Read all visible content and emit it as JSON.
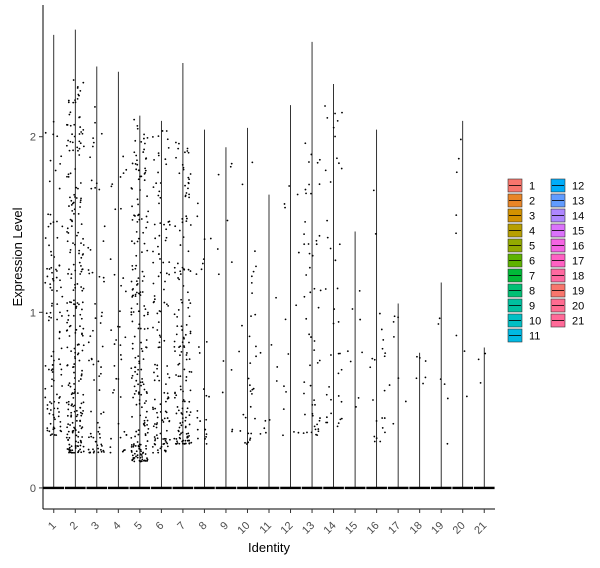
{
  "chart_data": {
    "type": "violin",
    "xlabel": "Identity",
    "ylabel": "Expression Level",
    "categories": [
      "1",
      "2",
      "3",
      "4",
      "5",
      "6",
      "7",
      "8",
      "9",
      "10",
      "11",
      "12",
      "13",
      "14",
      "15",
      "16",
      "17",
      "18",
      "19",
      "20",
      "21"
    ],
    "ylim": [
      -0.12,
      2.75
    ],
    "yticks": [
      0,
      1,
      2
    ],
    "grid": false,
    "legend_position": "right",
    "series": [
      {
        "name": "1",
        "color": "#F8766D",
        "max": 2.58,
        "zero_fraction": 0.72,
        "nonzero_range": [
          0.3,
          2.1
        ],
        "n_points": 110
      },
      {
        "name": "2",
        "color": "#E88526",
        "max": 2.61,
        "zero_fraction": 0.55,
        "nonzero_range": [
          0.2,
          2.35
        ],
        "n_points": 260
      },
      {
        "name": "3",
        "color": "#D39200",
        "max": 2.4,
        "zero_fraction": 0.8,
        "nonzero_range": [
          0.2,
          2.25
        ],
        "n_points": 70
      },
      {
        "name": "4",
        "color": "#B79F00",
        "max": 2.37,
        "zero_fraction": 0.85,
        "nonzero_range": [
          0.2,
          1.9
        ],
        "n_points": 40
      },
      {
        "name": "5",
        "color": "#93AA00",
        "max": 2.12,
        "zero_fraction": 0.6,
        "nonzero_range": [
          0.15,
          2.1
        ],
        "n_points": 220
      },
      {
        "name": "6",
        "color": "#5EB300",
        "max": 2.09,
        "zero_fraction": 0.65,
        "nonzero_range": [
          0.2,
          2.05
        ],
        "n_points": 130
      },
      {
        "name": "7",
        "color": "#00BA38",
        "max": 2.42,
        "zero_fraction": 0.62,
        "nonzero_range": [
          0.25,
          2.0
        ],
        "n_points": 160
      },
      {
        "name": "8",
        "color": "#00BF74",
        "max": 2.04,
        "zero_fraction": 0.85,
        "nonzero_range": [
          0.25,
          1.9
        ],
        "n_points": 25
      },
      {
        "name": "9",
        "color": "#00C19F",
        "max": 1.94,
        "zero_fraction": 0.9,
        "nonzero_range": [
          0.3,
          1.9
        ],
        "n_points": 12
      },
      {
        "name": "10",
        "color": "#00BFC4",
        "max": 2.05,
        "zero_fraction": 0.8,
        "nonzero_range": [
          0.25,
          1.9
        ],
        "n_points": 35
      },
      {
        "name": "11",
        "color": "#00B9E3",
        "max": 1.67,
        "zero_fraction": 0.92,
        "nonzero_range": [
          0.3,
          1.6
        ],
        "n_points": 10
      },
      {
        "name": "12",
        "color": "#00ADFA",
        "max": 2.18,
        "zero_fraction": 0.88,
        "nonzero_range": [
          0.3,
          2.15
        ],
        "n_points": 14
      },
      {
        "name": "13",
        "color": "#619CFF",
        "max": 2.54,
        "zero_fraction": 0.75,
        "nonzero_range": [
          0.3,
          2.0
        ],
        "n_points": 55
      },
      {
        "name": "14",
        "color": "#AE87FF",
        "max": 2.3,
        "zero_fraction": 0.8,
        "nonzero_range": [
          0.35,
          2.25
        ],
        "n_points": 40
      },
      {
        "name": "15",
        "color": "#DB72FB",
        "max": 1.46,
        "zero_fraction": 0.93,
        "nonzero_range": [
          0.45,
          1.4
        ],
        "n_points": 8
      },
      {
        "name": "16",
        "color": "#F564E3",
        "max": 2.04,
        "zero_fraction": 0.85,
        "nonzero_range": [
          0.25,
          1.95
        ],
        "n_points": 22
      },
      {
        "name": "17",
        "color": "#FF61C3",
        "max": 1.05,
        "zero_fraction": 0.93,
        "nonzero_range": [
          0.3,
          1.0
        ],
        "n_points": 8
      },
      {
        "name": "18",
        "color": "#FF69A0",
        "max": 0.77,
        "zero_fraction": 0.95,
        "nonzero_range": [
          0.4,
          0.75
        ],
        "n_points": 6
      },
      {
        "name": "19",
        "color": "#F8766D",
        "max": 1.17,
        "zero_fraction": 0.94,
        "nonzero_range": [
          0.25,
          1.15
        ],
        "n_points": 6
      },
      {
        "name": "20",
        "color": "#FF6C91",
        "max": 2.09,
        "zero_fraction": 0.93,
        "nonzero_range": [
          0.5,
          2.05
        ],
        "n_points": 8
      },
      {
        "name": "21",
        "color": "#FF6A98",
        "max": 0.8,
        "zero_fraction": 0.97,
        "nonzero_range": [
          0.5,
          0.78
        ],
        "n_points": 3
      }
    ]
  }
}
